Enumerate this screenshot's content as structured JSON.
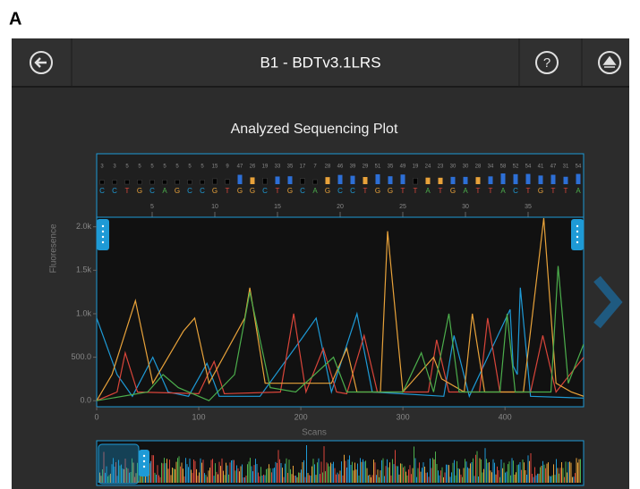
{
  "panel_label": "A",
  "toolbar": {
    "title": "B1 - BDTv3.1LRS",
    "help": "?"
  },
  "plot": {
    "title": "Analyzed Sequencing Plot",
    "bases": [
      "C",
      "C",
      "T",
      "G",
      "C",
      "A",
      "G",
      "C",
      "C",
      "G",
      "T",
      "G",
      "G",
      "C",
      "T",
      "G",
      "C",
      "A",
      "G",
      "C",
      "C",
      "T",
      "G",
      "G",
      "T",
      "T",
      "A",
      "T",
      "G",
      "A",
      "T",
      "T",
      "A",
      "C",
      "T",
      "G",
      "T",
      "T",
      "A"
    ],
    "quality": [
      3,
      3,
      5,
      5,
      5,
      5,
      5,
      5,
      5,
      15,
      9,
      47,
      26,
      19,
      33,
      35,
      17,
      7,
      28,
      46,
      39,
      29,
      51,
      35,
      49,
      19,
      24,
      23,
      30,
      30,
      28,
      34,
      58,
      52,
      54,
      41,
      47,
      31,
      54
    ],
    "position_ticks": [
      5,
      10,
      15,
      20,
      25,
      30,
      35
    ]
  },
  "chart_data": {
    "type": "line",
    "xlabel": "Scans",
    "ylabel": "Fluoresence",
    "xlim": [
      0,
      477
    ],
    "ylim": [
      -70,
      2110
    ],
    "xticks": [
      0,
      100,
      200,
      300,
      400
    ],
    "yticks": [
      {
        "value": 0,
        "label": "0.0"
      },
      {
        "value": 500,
        "label": "500.0"
      },
      {
        "value": 1000,
        "label": "1.0k"
      },
      {
        "value": 1500,
        "label": "1.5k"
      },
      {
        "value": 2000,
        "label": "2.0k"
      }
    ],
    "series": [
      {
        "color": "#1e9ad6",
        "x": [
          0,
          20,
          35,
          55,
          70,
          90,
          108,
          120,
          160,
          200,
          215,
          230,
          255,
          270,
          340,
          350,
          365,
          405,
          408,
          412,
          415,
          425,
          477
        ],
        "values": [
          950,
          300,
          50,
          500,
          100,
          50,
          430,
          50,
          50,
          700,
          950,
          100,
          1000,
          100,
          50,
          750,
          50,
          1050,
          400,
          300,
          1300,
          50,
          30
        ]
      },
      {
        "color": "#d9453a",
        "x": [
          0,
          20,
          28,
          40,
          100,
          115,
          125,
          180,
          193,
          205,
          222,
          235,
          245,
          262,
          275,
          325,
          333,
          345,
          375,
          383,
          395,
          425,
          437,
          450,
          477
        ],
        "values": [
          0,
          100,
          550,
          100,
          80,
          450,
          80,
          100,
          1000,
          100,
          600,
          100,
          80,
          750,
          100,
          100,
          700,
          100,
          100,
          950,
          100,
          100,
          750,
          100,
          500
        ]
      },
      {
        "color": "#e8a23a",
        "x": [
          0,
          15,
          38,
          55,
          85,
          96,
          110,
          145,
          150,
          165,
          230,
          245,
          255,
          278,
          285,
          300,
          330,
          338,
          360,
          368,
          380,
          418,
          438,
          450,
          465,
          477
        ],
        "values": [
          0,
          300,
          1150,
          200,
          800,
          950,
          200,
          950,
          1300,
          200,
          200,
          600,
          100,
          100,
          1950,
          100,
          500,
          250,
          100,
          1000,
          100,
          100,
          2100,
          200,
          100,
          50
        ]
      },
      {
        "color": "#4cae4c",
        "x": [
          0,
          50,
          65,
          80,
          110,
          135,
          150,
          170,
          195,
          232,
          245,
          300,
          318,
          330,
          345,
          355,
          395,
          402,
          410,
          445,
          452,
          462,
          477
        ],
        "values": [
          0,
          100,
          300,
          150,
          0,
          300,
          1250,
          150,
          100,
          500,
          100,
          100,
          550,
          100,
          1000,
          100,
          100,
          1000,
          100,
          100,
          1550,
          200,
          650
        ]
      }
    ]
  }
}
